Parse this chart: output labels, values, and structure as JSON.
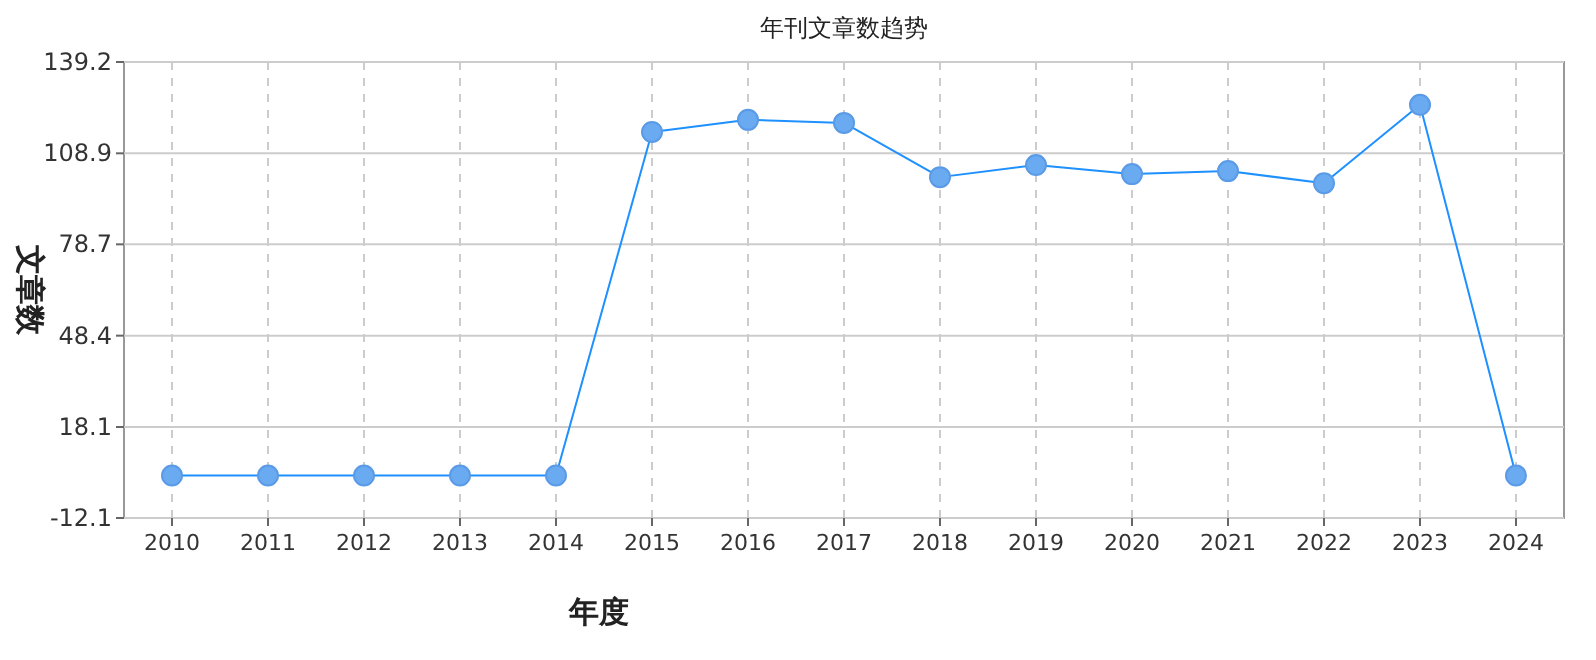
{
  "chart_data": {
    "type": "line",
    "title": "年刊文章数趋势",
    "xlabel": "年度",
    "ylabel": "文章数",
    "categories": [
      "2010",
      "2011",
      "2012",
      "2013",
      "2014",
      "2015",
      "2016",
      "2017",
      "2018",
      "2019",
      "2020",
      "2021",
      "2022",
      "2023",
      "2024"
    ],
    "series": [
      {
        "color": "#1e90ff",
        "values": [
          2,
          2,
          2,
          2,
          2,
          116,
          120,
          119,
          101,
          105,
          102,
          103,
          99,
          125,
          2
        ]
      }
    ],
    "ylim": [
      -12.1,
      139.2
    ],
    "yticks": [
      -12.1,
      18.1,
      48.4,
      78.7,
      108.9,
      139.2
    ],
    "grid": true,
    "marker": "circle",
    "line_style": "solid"
  }
}
